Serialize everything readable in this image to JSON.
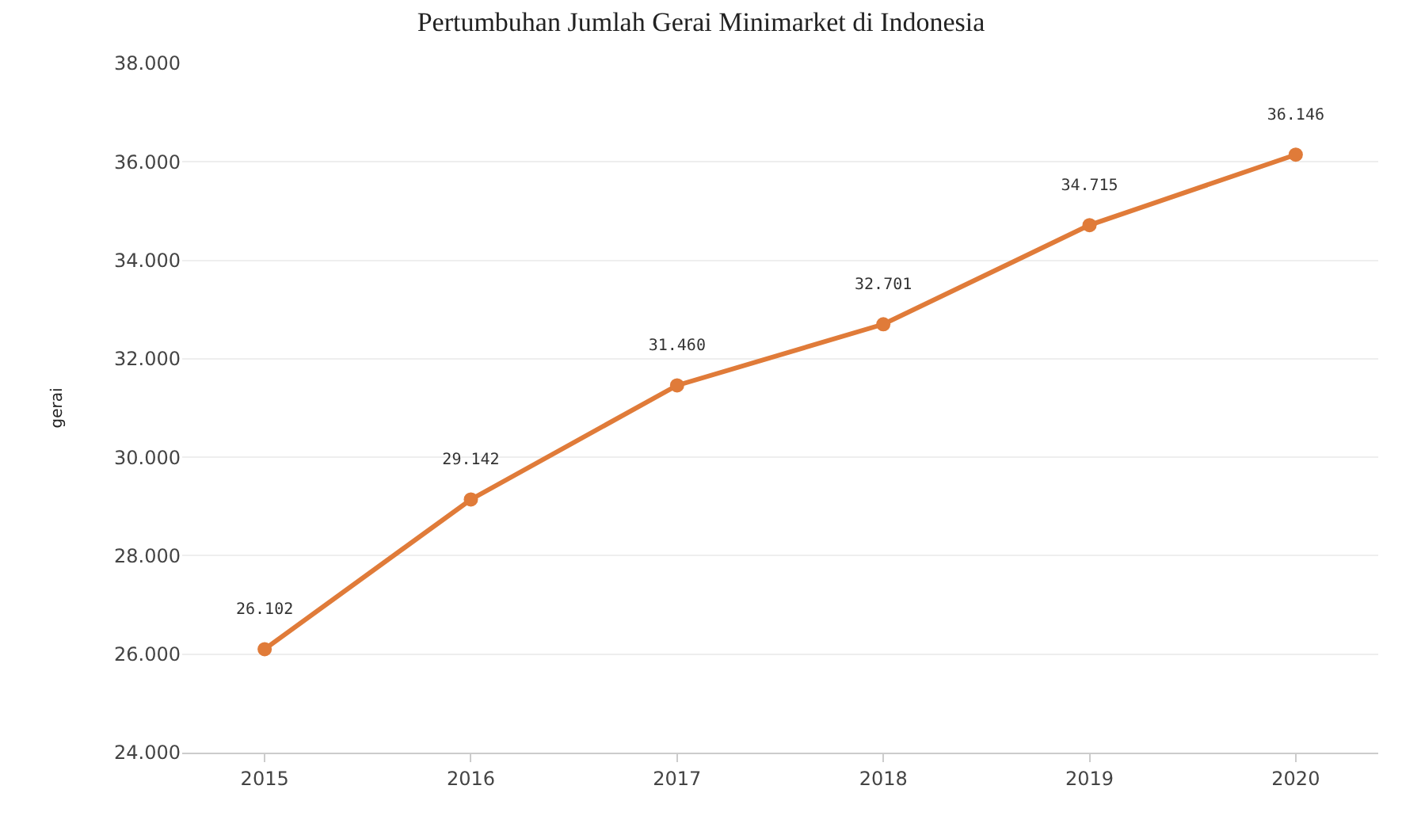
{
  "chart_data": {
    "type": "line",
    "title": "Pertumbuhan Jumlah Gerai Minimarket di Indonesia",
    "ylabel": "gerai",
    "categories": [
      "2015",
      "2016",
      "2017",
      "2018",
      "2019",
      "2020"
    ],
    "series": [
      {
        "color": "#e07b39",
        "values": [
          26102,
          29142,
          31460,
          32701,
          34715,
          36146
        ],
        "value_labels": [
          "26.102",
          "29.142",
          "31.460",
          "32.701",
          "34.715",
          "36.146"
        ]
      }
    ],
    "ylim": [
      24000,
      38000
    ],
    "yticks": [
      {
        "value": 24000,
        "label": "24.000"
      },
      {
        "value": 26000,
        "label": "26.000"
      },
      {
        "value": 28000,
        "label": "28.000"
      },
      {
        "value": 30000,
        "label": "30.000"
      },
      {
        "value": 32000,
        "label": "32.000"
      },
      {
        "value": 34000,
        "label": "34.000"
      },
      {
        "value": 36000,
        "label": "36.000"
      },
      {
        "value": 38000,
        "label": "38.000"
      }
    ],
    "grid": "y",
    "marker": "circle",
    "line_style": "solid"
  }
}
